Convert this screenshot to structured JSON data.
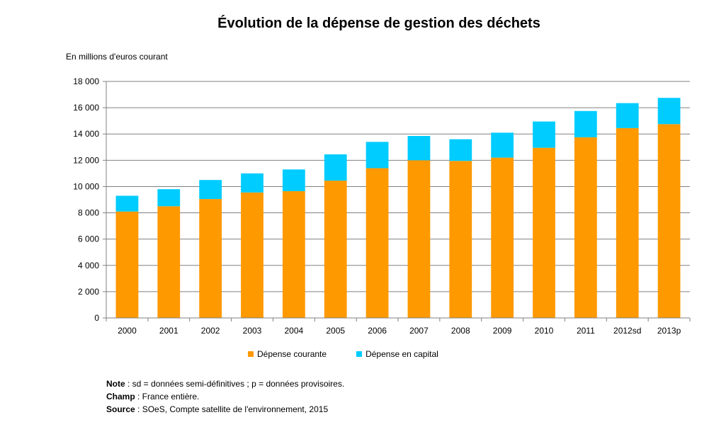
{
  "chart_data": {
    "type": "bar",
    "stacked": true,
    "title": "Évolution de la dépense de gestion des déchets",
    "ylabel": "En millions d'euros courant",
    "categories": [
      "2000",
      "2001",
      "2002",
      "2003",
      "2004",
      "2005",
      "2006",
      "2007",
      "2008",
      "2009",
      "2010",
      "2011",
      "2012sd",
      "2013p"
    ],
    "series": [
      {
        "name": "Dépense courante",
        "color": "#FF9900",
        "values": [
          8100,
          8500,
          9050,
          9550,
          9650,
          10450,
          11400,
          12000,
          11950,
          12200,
          12950,
          13750,
          14450,
          14750
        ]
      },
      {
        "name": "Dépense en capital",
        "color": "#00CCFF",
        "values": [
          1200,
          1300,
          1450,
          1450,
          1650,
          2000,
          2000,
          1850,
          1650,
          1900,
          2000,
          2000,
          1900,
          2000
        ]
      }
    ],
    "ylim": [
      0,
      18000
    ],
    "yticks": [
      0,
      2000,
      4000,
      6000,
      8000,
      10000,
      12000,
      14000,
      16000,
      18000
    ],
    "ytick_labels": [
      "0",
      "2 000",
      "4 000",
      "6 000",
      "8 000",
      "10 000",
      "12 000",
      "14 000",
      "16 000",
      "18 000"
    ],
    "grid": true,
    "legend": "bottom"
  },
  "notes": [
    {
      "label": "Note",
      "text": " : sd = données semi-définitives ; p = données provisoires."
    },
    {
      "label": "Champ",
      "text": " : France entière."
    },
    {
      "label": "Source",
      "text": " : SOeS, Compte satellite de l'environnement, 2015"
    }
  ]
}
